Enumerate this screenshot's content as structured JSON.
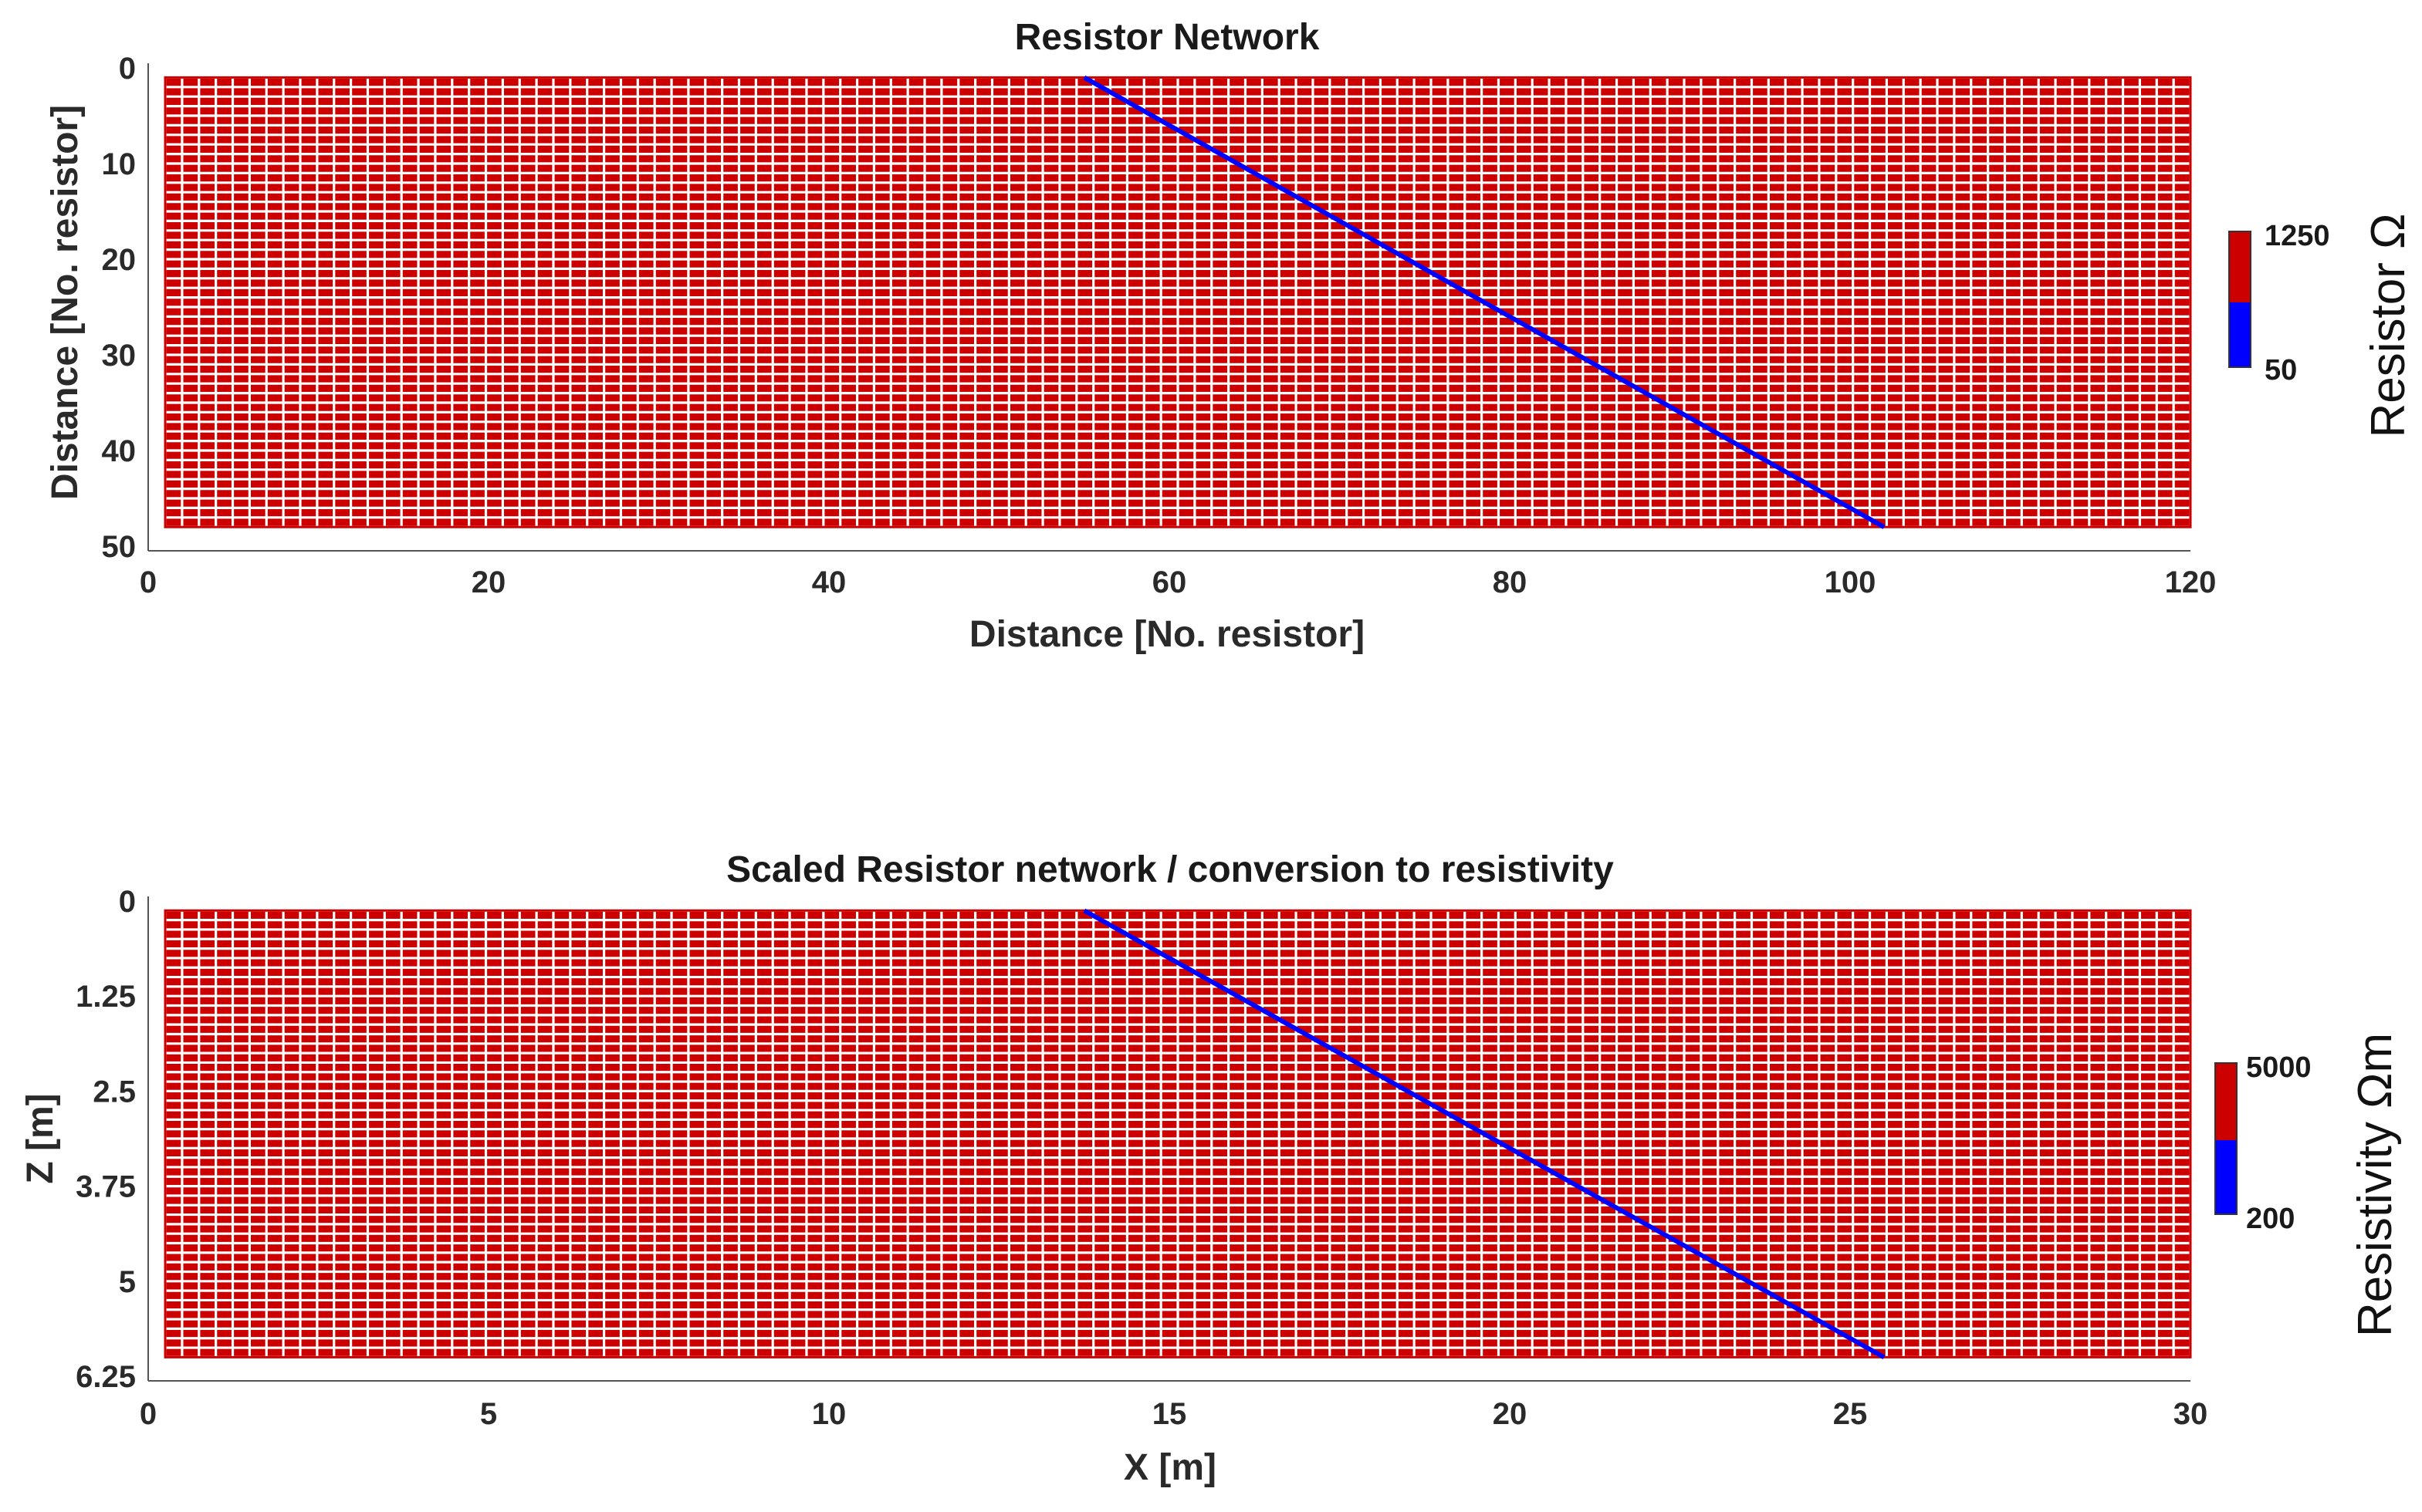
{
  "chart_data": [
    {
      "type": "heatmap",
      "title": "Resistor Network",
      "xlabel": "Distance [No. resistor]",
      "ylabel": "Distance [No. resistor]",
      "xlim": [
        0,
        120
      ],
      "ylim": [
        0,
        50
      ],
      "y_reversed": true,
      "xticks": [
        "0",
        "20",
        "40",
        "60",
        "80",
        "100",
        "120"
      ],
      "yticks": [
        "0",
        "10",
        "20",
        "30",
        "40",
        "50"
      ],
      "grid_extent_x": [
        1,
        120
      ],
      "grid_extent_y": [
        1,
        48
      ],
      "background_value": 1250,
      "anomaly_value": 50,
      "anomaly_line": [
        [
          55,
          1
        ],
        [
          102,
          48
        ]
      ],
      "colorbar": {
        "label": "Resistor Ω",
        "max_label": "1250",
        "min_label": "50"
      },
      "colors": {
        "high": "#cc0000",
        "low": "#0000ff",
        "grid": "#ffffff"
      }
    },
    {
      "type": "heatmap",
      "title": "Scaled Resistor network / conversion to resistivity",
      "xlabel": "X [m]",
      "ylabel": "Z [m]",
      "xlim": [
        0,
        30
      ],
      "ylim": [
        0,
        6.25
      ],
      "y_reversed": true,
      "xticks": [
        "0",
        "5",
        "10",
        "15",
        "20",
        "25",
        "30"
      ],
      "yticks": [
        "0",
        "1.25",
        "2.5",
        "3.75",
        "5",
        "6.25"
      ],
      "grid_extent_x": [
        0.25,
        30
      ],
      "grid_extent_y": [
        0.125,
        6
      ],
      "background_value": 5000,
      "anomaly_value": 200,
      "anomaly_line": [
        [
          13.75,
          0.125
        ],
        [
          25.5,
          6
        ]
      ],
      "colorbar": {
        "label": "Resistivity Ωm",
        "max_label": "5000",
        "min_label": "200"
      },
      "colors": {
        "high": "#cc0000",
        "low": "#0000ff",
        "grid": "#ffffff"
      }
    }
  ]
}
